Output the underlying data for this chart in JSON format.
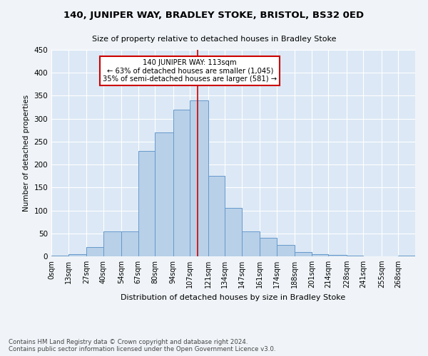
{
  "title": "140, JUNIPER WAY, BRADLEY STOKE, BRISTOL, BS32 0ED",
  "subtitle": "Size of property relative to detached houses in Bradley Stoke",
  "xlabel": "Distribution of detached houses by size in Bradley Stoke",
  "ylabel": "Number of detached properties",
  "bar_color": "#b8d0e8",
  "bar_edge_color": "#6699cc",
  "background_color": "#dce8f5",
  "grid_color": "#ffffff",
  "vline_x": 113,
  "vline_color": "#cc0000",
  "annotation_text": "140 JUNIPER WAY: 113sqm\n← 63% of detached houses are smaller (1,045)\n35% of semi-detached houses are larger (581) →",
  "annotation_box_color": "#cc0000",
  "bins": [
    0,
    13,
    27,
    40,
    54,
    67,
    80,
    94,
    107,
    121,
    134,
    147,
    161,
    174,
    188,
    201,
    214,
    228,
    241,
    255,
    268,
    281
  ],
  "bar_heights": [
    2,
    5,
    20,
    55,
    55,
    230,
    270,
    320,
    340,
    175,
    105,
    55,
    40,
    25,
    10,
    5,
    3,
    1,
    0,
    0,
    2
  ],
  "ylim": [
    0,
    450
  ],
  "yticks": [
    0,
    50,
    100,
    150,
    200,
    250,
    300,
    350,
    400,
    450
  ],
  "footer_text": "Contains HM Land Registry data © Crown copyright and database right 2024.\nContains public sector information licensed under the Open Government Licence v3.0.",
  "tick_labels": [
    "0sqm",
    "13sqm",
    "27sqm",
    "40sqm",
    "54sqm",
    "67sqm",
    "80sqm",
    "94sqm",
    "107sqm",
    "121sqm",
    "134sqm",
    "147sqm",
    "161sqm",
    "174sqm",
    "188sqm",
    "201sqm",
    "214sqm",
    "228sqm",
    "241sqm",
    "255sqm",
    "268sqm"
  ]
}
